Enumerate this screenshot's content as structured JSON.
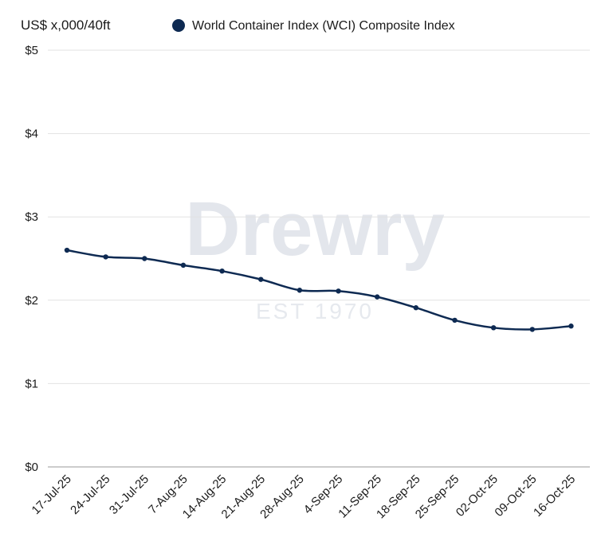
{
  "chart_data": {
    "type": "line",
    "ylabel": "US$ x,000/40ft",
    "xlabel": "",
    "ylim": [
      0,
      5
    ],
    "ytick_labels": [
      "$0",
      "$1",
      "$2",
      "$3",
      "$4",
      "$5"
    ],
    "grid": true,
    "legend_position": "top",
    "watermark": {
      "brand": "Drewry",
      "tagline": "EST 1970"
    },
    "categories": [
      "17-Jul-25",
      "24-Jul-25",
      "31-Jul-25",
      "7-Aug-25",
      "14-Aug-25",
      "21-Aug-25",
      "28-Aug-25",
      "4-Sep-25",
      "11-Sep-25",
      "18-Sep-25",
      "25-Sep-25",
      "02-Oct-25",
      "09-Oct-25",
      "16-Oct-25"
    ],
    "series": [
      {
        "name": "World Container Index (WCI) Composite Index",
        "color": "#0e2a52",
        "values": [
          2.6,
          2.52,
          2.5,
          2.42,
          2.35,
          2.25,
          2.12,
          2.11,
          2.04,
          1.91,
          1.76,
          1.67,
          1.65,
          1.69
        ]
      }
    ]
  }
}
